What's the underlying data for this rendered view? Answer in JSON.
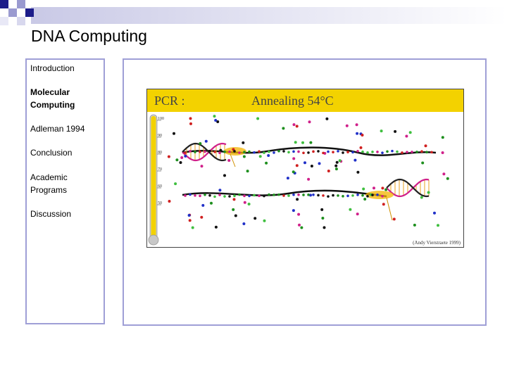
{
  "slide": {
    "title": "DNA Computing"
  },
  "nav": {
    "items": [
      {
        "label": "Introduction",
        "active": false
      },
      {
        "label": "Molecular Computing",
        "active": true
      },
      {
        "label": "Adleman 1994",
        "active": false
      },
      {
        "label": "Conclusion",
        "active": false
      },
      {
        "label": "Academic Programs",
        "active": false
      },
      {
        "label": "Discussion",
        "active": false
      }
    ]
  },
  "figure": {
    "label": "PCR :",
    "stage": "Annealing 54°C",
    "credit": "(Andy Vierstraete 1999)",
    "thermometer_ticks": [
      "100",
      "90",
      "80",
      "70",
      "60",
      "50"
    ],
    "colors": {
      "banner": "#f3d200",
      "mercury": "#f3d200",
      "strand": "#111111",
      "helix_a": "#d0208a",
      "helix_b": "#222222",
      "primer": "#f3b400"
    }
  }
}
